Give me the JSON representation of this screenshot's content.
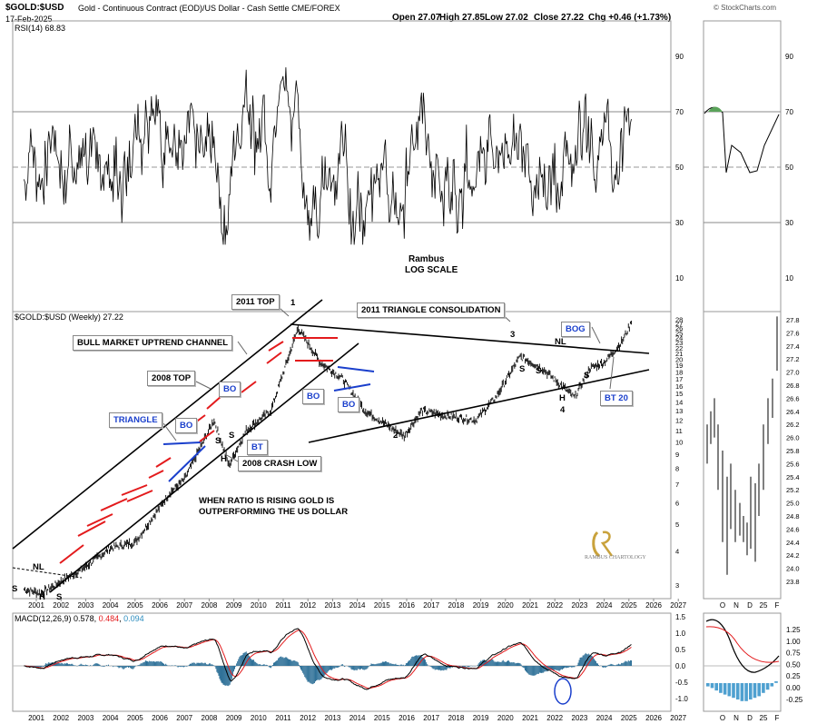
{
  "header": {
    "symbol": "$GOLD:$USD",
    "description": "Gold - Continuous Contract (EOD)/US Dollar - Cash Settle CME/FOREX",
    "date": "17-Feb-2025",
    "open": "Open 27.07",
    "high": "High 27.85",
    "low": "Low 27.02",
    "close": "Close 27.22",
    "chg": "Chg +0.46 (+1.73%)",
    "credit": "© StockCharts.com"
  },
  "rsi_panel": {
    "legend": "RSI(14) 68.83",
    "ticks": [
      "90",
      "70",
      "50",
      "30",
      "10"
    ],
    "note_line1": "Rambus",
    "note_line2": "LOG SCALE"
  },
  "price_panel": {
    "legend": "$GOLD:$USD (Weekly) 27.22",
    "right_ticks": [
      "28",
      "27",
      "26",
      "25",
      "24",
      "23",
      "22",
      "21",
      "20",
      "19",
      "18",
      "17",
      "16",
      "15",
      "14",
      "13",
      "12",
      "11",
      "10",
      "9",
      "8",
      "7",
      "6",
      "5",
      "4",
      "3"
    ],
    "inset_ticks": [
      "27.8",
      "27.6",
      "27.4",
      "27.2",
      "27.0",
      "26.8",
      "26.6",
      "26.4",
      "26.2",
      "26.0",
      "25.8",
      "25.6",
      "25.4",
      "25.2",
      "25.0",
      "24.8",
      "24.6",
      "24.4",
      "24.2",
      "24.0",
      "23.8"
    ],
    "years": [
      "2001",
      "2002",
      "2003",
      "2004",
      "2005",
      "2006",
      "2007",
      "2008",
      "2009",
      "2010",
      "2011",
      "2012",
      "2013",
      "2014",
      "2015",
      "2016",
      "2017",
      "2018",
      "2019",
      "2020",
      "2021",
      "2022",
      "2023",
      "2024",
      "2025",
      "2026",
      "2027"
    ],
    "inset_months": [
      "O",
      "N",
      "D",
      "25",
      "F"
    ]
  },
  "annotations": {
    "top_2011": "2011 TOP",
    "triangle_consolidation": "2011 TRIANGLE CONSOLIDATION",
    "uptrend_channel": "BULL MARKET UPTREND CHANNEL",
    "top_2008": "2008 TOP",
    "triangle": "TRIANGLE",
    "bo": "BO",
    "bt": "BT",
    "crash_low": "2008 CRASH LOW",
    "ratio_note_1": "WHEN RATIO IS RISING GOLD IS",
    "ratio_note_2": "OUTPERFORMING THE US DOLLAR",
    "bog": "BOG",
    "bt20": "BT 20",
    "nl": "NL",
    "s": "S",
    "h": "H",
    "n1": "1",
    "n2": "2",
    "n3": "3",
    "n4": "4",
    "brand": "RAMBUS CHARTOLOGY"
  },
  "macd_panel": {
    "legend_label": "MACD(12,26,9)",
    "legend_macd": "0.578",
    "legend_signal": "0.484",
    "legend_hist": "0.094",
    "ticks": [
      "1.5",
      "1.0",
      "0.5",
      "0.0",
      "-0.5",
      "-1.0"
    ],
    "inset_ticks": [
      "1.25",
      "1.00",
      "0.75",
      "0.50",
      "0.25",
      "0.00",
      "-0.25"
    ]
  },
  "chart_data": {
    "type": "line",
    "title": "$GOLD:$USD (Weekly)",
    "price_key_points": {
      "x": [
        2000.5,
        2001.2,
        2002.0,
        2003.0,
        2004.0,
        2005.0,
        2006.4,
        2007.0,
        2008.2,
        2008.8,
        2009.5,
        2010.5,
        2011.6,
        2012.5,
        2013.4,
        2014.3,
        2015.9,
        2016.6,
        2017.5,
        2018.8,
        2019.6,
        2020.6,
        2021.5,
        2022.8,
        2023.4,
        2024.0,
        2024.7,
        2025.1
      ],
      "y": [
        2.9,
        2.8,
        3.1,
        3.5,
        4.1,
        4.3,
        6.5,
        7.3,
        12.0,
        8.2,
        11.0,
        13.0,
        26.0,
        19.5,
        17.0,
        13.0,
        10.5,
        13.0,
        12.5,
        12.0,
        14.5,
        20.5,
        18.5,
        14.5,
        18.5,
        19.5,
        23.0,
        27.22
      ]
    },
    "rsi_last": 68.83,
    "macd_last": 0.578,
    "signal_last": 0.484,
    "hist_last": 0.094,
    "price_scale": "log",
    "rsi_ylim": [
      0,
      100
    ],
    "macd_ylim": [
      -1.3,
      1.7
    ]
  },
  "colors": {
    "price": "#000000",
    "macd": "#000000",
    "signal": "#e31a1c",
    "histogram": "#2b6e96",
    "annotation_blue": "#1a3fcc",
    "annotation_red": "#e31a1c",
    "rsi_fill": "#5aa35a"
  }
}
